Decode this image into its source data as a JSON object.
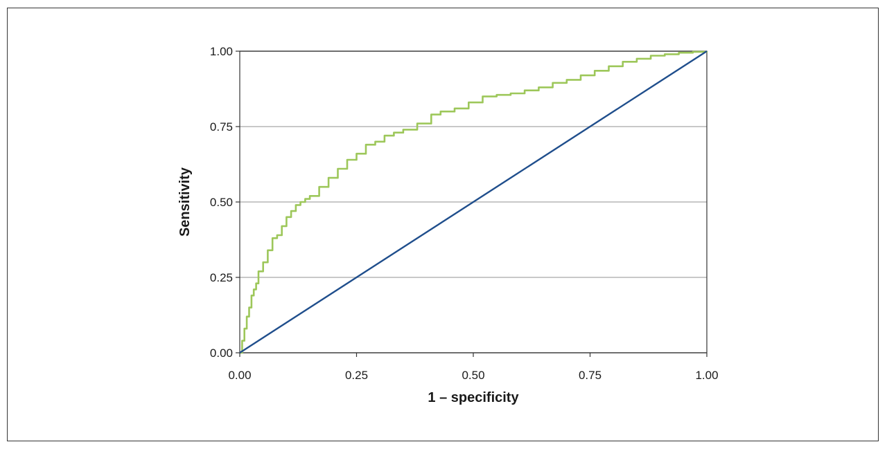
{
  "chart_data": {
    "type": "line",
    "xlabel": "1 – specificity",
    "ylabel": "Sensitivity",
    "xlim": [
      0,
      1
    ],
    "ylim": [
      0,
      1
    ],
    "x_ticks": [
      "0.00",
      "0.25",
      "0.50",
      "0.75",
      "1.00"
    ],
    "y_ticks": [
      "0.00",
      "0.25",
      "0.50",
      "0.75",
      "1.00"
    ],
    "grid": "horizontal",
    "legend": "none",
    "colors": {
      "roc_curve": "#9dc75a",
      "reference_line": "#1f4e8c",
      "grid": "#c8c8c8",
      "axis": "#333333"
    },
    "series": [
      {
        "id": "roc",
        "x": [
          0,
          0.005,
          0.01,
          0.015,
          0.02,
          0.025,
          0.03,
          0.035,
          0.04,
          0.05,
          0.06,
          0.07,
          0.08,
          0.09,
          0.1,
          0.11,
          0.12,
          0.13,
          0.14,
          0.15,
          0.17,
          0.19,
          0.21,
          0.23,
          0.25,
          0.27,
          0.29,
          0.31,
          0.33,
          0.35,
          0.38,
          0.41,
          0.43,
          0.46,
          0.49,
          0.52,
          0.55,
          0.58,
          0.61,
          0.64,
          0.67,
          0.7,
          0.73,
          0.76,
          0.79,
          0.82,
          0.85,
          0.88,
          0.91,
          0.94,
          0.97,
          1.0
        ],
        "y": [
          0,
          0.04,
          0.08,
          0.12,
          0.15,
          0.19,
          0.21,
          0.23,
          0.27,
          0.3,
          0.34,
          0.38,
          0.39,
          0.42,
          0.45,
          0.47,
          0.49,
          0.5,
          0.51,
          0.52,
          0.55,
          0.58,
          0.61,
          0.64,
          0.66,
          0.69,
          0.7,
          0.72,
          0.73,
          0.74,
          0.76,
          0.79,
          0.8,
          0.81,
          0.83,
          0.85,
          0.855,
          0.86,
          0.87,
          0.88,
          0.895,
          0.905,
          0.92,
          0.935,
          0.95,
          0.965,
          0.975,
          0.985,
          0.99,
          0.995,
          0.998,
          1.0
        ]
      },
      {
        "id": "reference",
        "x": [
          0,
          1
        ],
        "y": [
          0,
          1
        ]
      }
    ]
  }
}
